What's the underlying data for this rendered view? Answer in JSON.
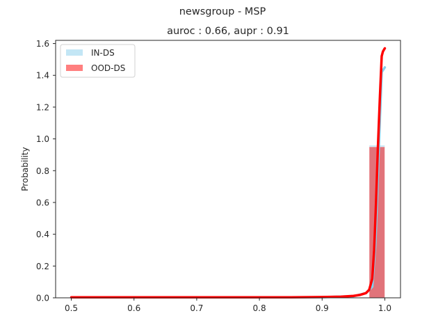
{
  "chart_data": {
    "type": "histogram",
    "suptitle": "newsgroup - MSP",
    "title": "auroc : 0.66, aupr : 0.91",
    "xlabel": "",
    "ylabel": "Probability",
    "xlim": [
      0.475,
      1.025
    ],
    "ylim": [
      0,
      1.62
    ],
    "xticks": [
      0.5,
      0.6,
      0.7,
      0.8,
      0.9,
      1.0
    ],
    "xtick_labels": [
      "0.5",
      "0.6",
      "0.7",
      "0.8",
      "0.9",
      "1.0"
    ],
    "yticks": [
      0.0,
      0.2,
      0.4,
      0.6,
      0.8,
      1.0,
      1.2,
      1.4,
      1.6
    ],
    "ytick_labels": [
      "0.0",
      "0.2",
      "0.4",
      "0.6",
      "0.8",
      "1.0",
      "1.2",
      "1.4",
      "1.6"
    ],
    "grid": false,
    "legend_position": "top-left",
    "series": [
      {
        "name": "IN-DS",
        "kind": "histogram",
        "color": "#87CEEB",
        "opacity": 0.5,
        "bins": [
          {
            "x0": 0.975,
            "x1": 1.0,
            "value": 0.96
          }
        ]
      },
      {
        "name": "OOD-DS",
        "kind": "histogram",
        "color": "#FF0000",
        "opacity": 0.5,
        "bins": [
          {
            "x0": 0.975,
            "x1": 1.0,
            "value": 0.95
          }
        ]
      }
    ],
    "kde_lines": [
      {
        "series": "IN-DS",
        "color": "#87CEEB",
        "x": [
          0.5,
          0.6,
          0.7,
          0.8,
          0.9,
          0.95,
          0.97,
          0.98,
          0.985,
          0.99,
          0.995,
          1.0
        ],
        "y": [
          0.003,
          0.003,
          0.003,
          0.003,
          0.004,
          0.01,
          0.03,
          0.07,
          0.35,
          0.9,
          1.42,
          1.45
        ]
      },
      {
        "series": "OOD-DS",
        "color": "#FF0000",
        "x": [
          0.5,
          0.6,
          0.7,
          0.8,
          0.85,
          0.9,
          0.93,
          0.95,
          0.96,
          0.97,
          0.975,
          0.98,
          0.983,
          0.986,
          0.989,
          0.992,
          0.995,
          0.997,
          1.0
        ],
        "y": [
          0.003,
          0.003,
          0.003,
          0.003,
          0.003,
          0.005,
          0.007,
          0.012,
          0.018,
          0.03,
          0.05,
          0.12,
          0.3,
          0.6,
          0.95,
          1.25,
          1.52,
          1.55,
          1.57
        ]
      }
    ]
  }
}
